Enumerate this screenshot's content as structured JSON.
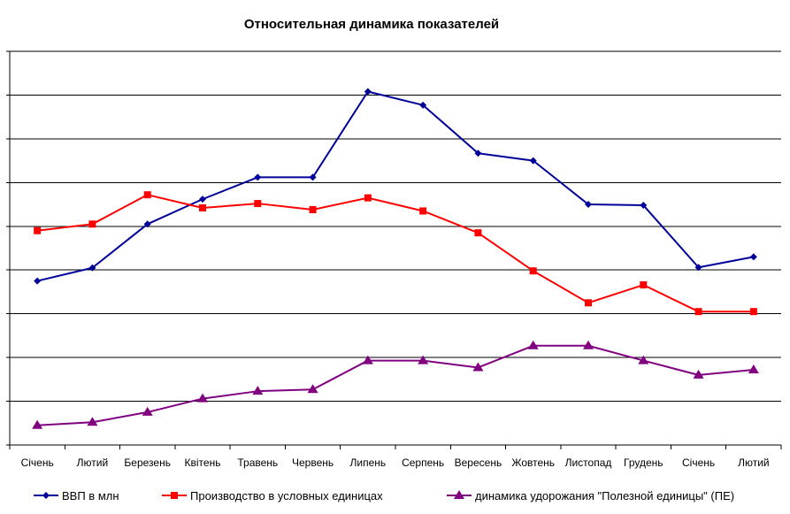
{
  "chart_data": {
    "type": "line",
    "title": "Относительная динамика показателей",
    "xlabel": "",
    "ylabel": "",
    "categories": [
      "Січень",
      "Лютий",
      "Березень",
      "Квітень",
      "Травень",
      "Червень",
      "Липень",
      "Серпень",
      "Вересень",
      "Жовтень",
      "Листопад",
      "Грудень",
      "Січень",
      "Лютий"
    ],
    "ylim": [
      0,
      9
    ],
    "y_tick_labels": "none",
    "grid": "horizontal",
    "legend_position": "bottom",
    "series": [
      {
        "name": "ВВП в млн",
        "color": "#000099",
        "marker": "diamond",
        "values": [
          3.75,
          4.05,
          5.05,
          5.62,
          6.12,
          6.12,
          8.08,
          7.77,
          6.67,
          6.5,
          5.5,
          5.48,
          4.06,
          4.3
        ]
      },
      {
        "name": "Производство в условных единицах",
        "color": "#ff0000",
        "marker": "square",
        "values": [
          4.9,
          5.05,
          5.72,
          5.42,
          5.52,
          5.38,
          5.65,
          5.35,
          4.85,
          3.98,
          3.25,
          3.66,
          3.05,
          3.05
        ]
      },
      {
        "name": "динамика удорожания \"Полезной единицы\" (ПЕ)",
        "color": "#800080",
        "marker": "triangle",
        "values": [
          0.45,
          0.52,
          0.75,
          1.06,
          1.23,
          1.27,
          1.93,
          1.93,
          1.77,
          2.27,
          2.27,
          1.93,
          1.6,
          1.72
        ]
      }
    ]
  }
}
